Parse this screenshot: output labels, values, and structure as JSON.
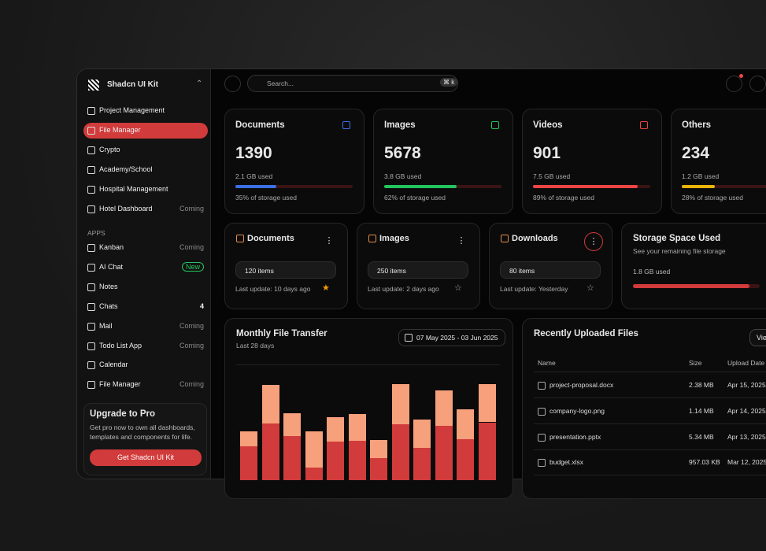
{
  "sidebar": {
    "brand": "Shadcn UI Kit",
    "nav": [
      {
        "label": "Project Management"
      },
      {
        "label": "File Manager",
        "active": true
      },
      {
        "label": "Crypto"
      },
      {
        "label": "Academy/School"
      },
      {
        "label": "Hospital Management"
      },
      {
        "label": "Hotel Dashboard",
        "badge": "Coming"
      }
    ],
    "apps_title": "APPS",
    "apps": [
      {
        "label": "Kanban",
        "badge": "Coming"
      },
      {
        "label": "AI Chat",
        "badge": "New"
      },
      {
        "label": "Notes"
      },
      {
        "label": "Chats",
        "badge": "4"
      },
      {
        "label": "Mail",
        "badge": "Coming"
      },
      {
        "label": "Todo List App",
        "badge": "Coming"
      },
      {
        "label": "Calendar"
      },
      {
        "label": "File Manager",
        "badge": "Coming"
      }
    ],
    "upgrade": {
      "title": "Upgrade to Pro",
      "text": "Get pro now to own all dashboards, templates and components for life.",
      "button": "Get Shadcn UI Kit"
    }
  },
  "header": {
    "search": "Search...",
    "shortcut": "⌘ k"
  },
  "stats": [
    {
      "title": "Documents",
      "count": 1390,
      "used": "2.1 GB used",
      "percent": 35,
      "percent_label": "35% of storage used",
      "color": "#3b6fe6"
    },
    {
      "title": "Images",
      "count": 5678,
      "used": "3.8 GB used",
      "percent": 62,
      "percent_label": "62% of storage used",
      "color": "#22c55e"
    },
    {
      "title": "Videos",
      "count": 901,
      "used": "7.5 GB used",
      "percent": 89,
      "percent_label": "89% of storage used",
      "color": "#ef4444"
    },
    {
      "title": "Others",
      "count": 234,
      "used": "1.2 GB used",
      "percent": 28,
      "percent_label": "28% of storage used",
      "color": "#eab308"
    }
  ],
  "folders": [
    {
      "name": "Documents",
      "items": "120 items",
      "updated": "Last update: 10 days ago",
      "starred": true
    },
    {
      "name": "Images",
      "items": "250 items",
      "updated": "Last update: 2 days ago",
      "starred": false
    },
    {
      "name": "Downloads",
      "items": "80 items",
      "updated": "Last update: Yesterday",
      "starred": false
    }
  ],
  "storage": {
    "title": "Storage Space Used",
    "subtitle": "See your remaining file storage",
    "used": "1.8 GB used",
    "percent": 92
  },
  "transfer": {
    "title": "Monthly File Transfer",
    "subtitle": "Last 28 days",
    "range": "07 May 2025 - 03 Jun 2025",
    "chart": {
      "type": "bar",
      "stacked": true,
      "ylim": [
        0,
        150
      ],
      "series": [
        {
          "color": "#d13b3b",
          "values": [
            44,
            73,
            57,
            16,
            50,
            51,
            29,
            72,
            42,
            70,
            53,
            75
          ]
        },
        {
          "color": "#f7a07c",
          "values": [
            19,
            50,
            30,
            47,
            32,
            35,
            23,
            52,
            37,
            46,
            39,
            49
          ]
        }
      ]
    }
  },
  "recent": {
    "title": "Recently Uploaded Files",
    "button": "View",
    "columns": [
      "Name",
      "Size",
      "Upload Date"
    ],
    "rows": [
      [
        "project-proposal.docx",
        "2.38 MB",
        "Apr 15, 2025"
      ],
      [
        "company-logo.png",
        "1.14 MB",
        "Apr 14, 2025"
      ],
      [
        "presentation.pptx",
        "5.34 MB",
        "Apr 13, 2025"
      ],
      [
        "budget.xlsx",
        "957.03 KB",
        "Mar 12, 2025"
      ]
    ]
  }
}
